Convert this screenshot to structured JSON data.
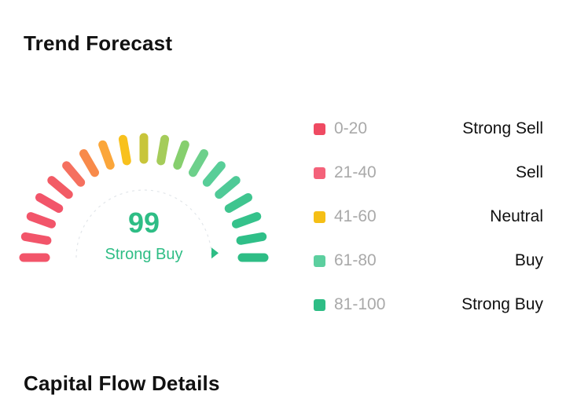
{
  "sections": {
    "trend_forecast_title": "Trend Forecast",
    "capital_flow_title": "Capital Flow Details"
  },
  "gauge": {
    "score": "99",
    "rating": "Strong Buy",
    "value": 99,
    "min": 0,
    "max": 100,
    "value_color": "#2ebd85",
    "tick_colors_start_to_end": [
      "#f2556a",
      "#f2556a",
      "#f2556a",
      "#f2556a",
      "#f25b65",
      "#f5705f",
      "#f88a4a",
      "#fba63a",
      "#f8c11d",
      "#c8c53a",
      "#a5cc5a",
      "#86cf6e",
      "#6dd08b",
      "#58ce98",
      "#4fca97",
      "#3fc58f",
      "#35c28b",
      "#2fbf88",
      "#2ebd85"
    ]
  },
  "legend": [
    {
      "range": "0-20",
      "label": "Strong Sell",
      "color": "#ef4a62"
    },
    {
      "range": "21-40",
      "label": "Sell",
      "color": "#f4627a"
    },
    {
      "range": "41-60",
      "label": "Neutral",
      "color": "#f5bf16"
    },
    {
      "range": "61-80",
      "label": "Buy",
      "color": "#5ccf9f"
    },
    {
      "range": "81-100",
      "label": "Strong Buy",
      "color": "#2ebd85"
    }
  ]
}
